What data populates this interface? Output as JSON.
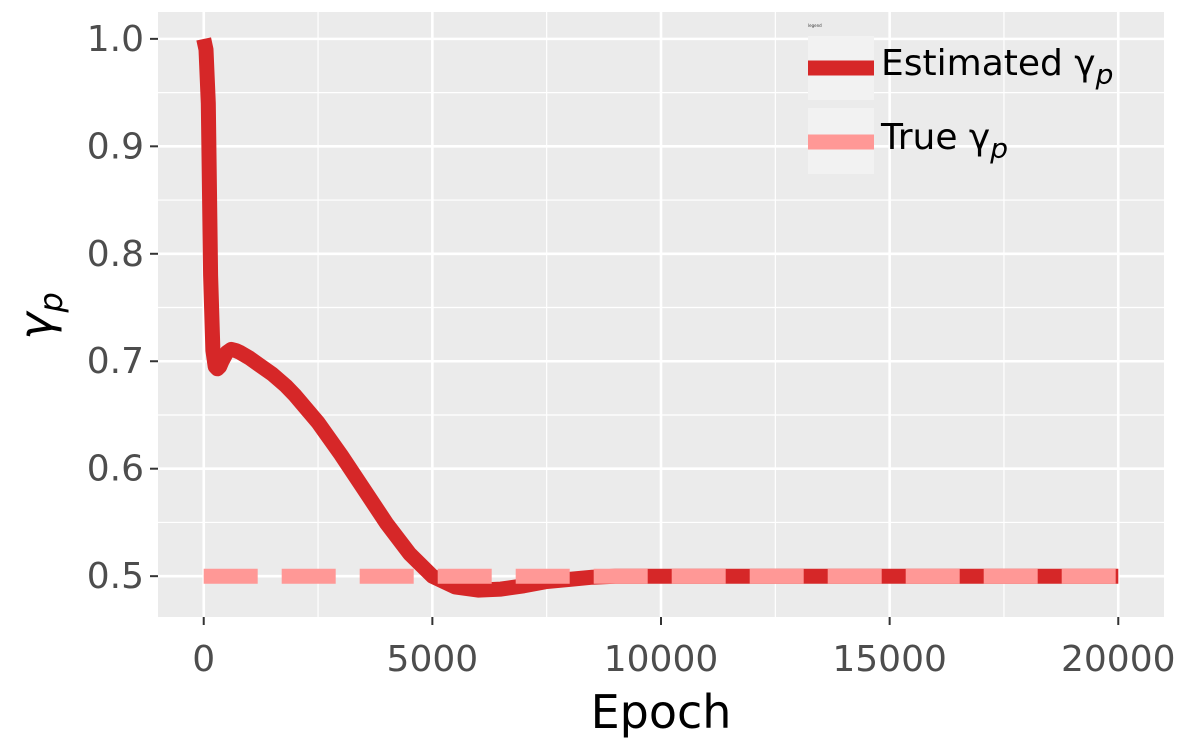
{
  "chart_data": {
    "type": "line",
    "xlabel": "Epoch",
    "ylabel": "γ",
    "ylabel_sub": "p",
    "xlim": [
      -1000,
      21000
    ],
    "ylim": [
      0.462,
      1.025
    ],
    "xticks": [
      0,
      5000,
      10000,
      15000,
      20000
    ],
    "xtick_labels": [
      "0",
      "5000",
      "10000",
      "15000",
      "20000"
    ],
    "yticks": [
      0.5,
      0.6,
      0.7,
      0.8,
      0.9,
      1.0
    ],
    "ytick_labels": [
      "0.5",
      "0.6",
      "0.7",
      "0.8",
      "0.9",
      "1.0"
    ],
    "grid": true,
    "legend": {
      "title": "legend",
      "placement": "top-right",
      "entries": [
        {
          "label": "Estimated γ",
          "sub": "p",
          "color": "#d62728",
          "style": "solid"
        },
        {
          "label": "True γ",
          "sub": "p",
          "color": "#ff9896",
          "style": "dashed"
        }
      ]
    },
    "series": [
      {
        "name": "Estimated γp",
        "color": "#d62728",
        "style": "solid",
        "x": [
          0,
          50,
          100,
          150,
          200,
          250,
          300,
          350,
          400,
          500,
          600,
          700,
          800,
          1000,
          1200,
          1500,
          1800,
          2000,
          2500,
          3000,
          3500,
          4000,
          4500,
          5000,
          5500,
          6000,
          6500,
          7000,
          7500,
          8000,
          8500,
          9000,
          10000,
          11000,
          12000,
          13000,
          14000,
          15000,
          16000,
          17000,
          18000,
          19000,
          20000
        ],
        "y": [
          1.0,
          0.99,
          0.94,
          0.78,
          0.71,
          0.695,
          0.693,
          0.695,
          0.7,
          0.708,
          0.711,
          0.71,
          0.708,
          0.703,
          0.697,
          0.688,
          0.677,
          0.668,
          0.643,
          0.613,
          0.581,
          0.549,
          0.521,
          0.5,
          0.49,
          0.487,
          0.488,
          0.491,
          0.495,
          0.497,
          0.499,
          0.5,
          0.5,
          0.5,
          0.5,
          0.5,
          0.5,
          0.5,
          0.5,
          0.5,
          0.5,
          0.5,
          0.5
        ]
      },
      {
        "name": "True γp",
        "color": "#ff9896",
        "style": "dashed",
        "x": [
          0,
          20000
        ],
        "y": [
          0.5,
          0.5
        ]
      }
    ]
  },
  "colors": {
    "panel_background": "#ebebeb",
    "grid": "#ffffff",
    "estimated": "#d62728",
    "true": "#ff9896"
  }
}
